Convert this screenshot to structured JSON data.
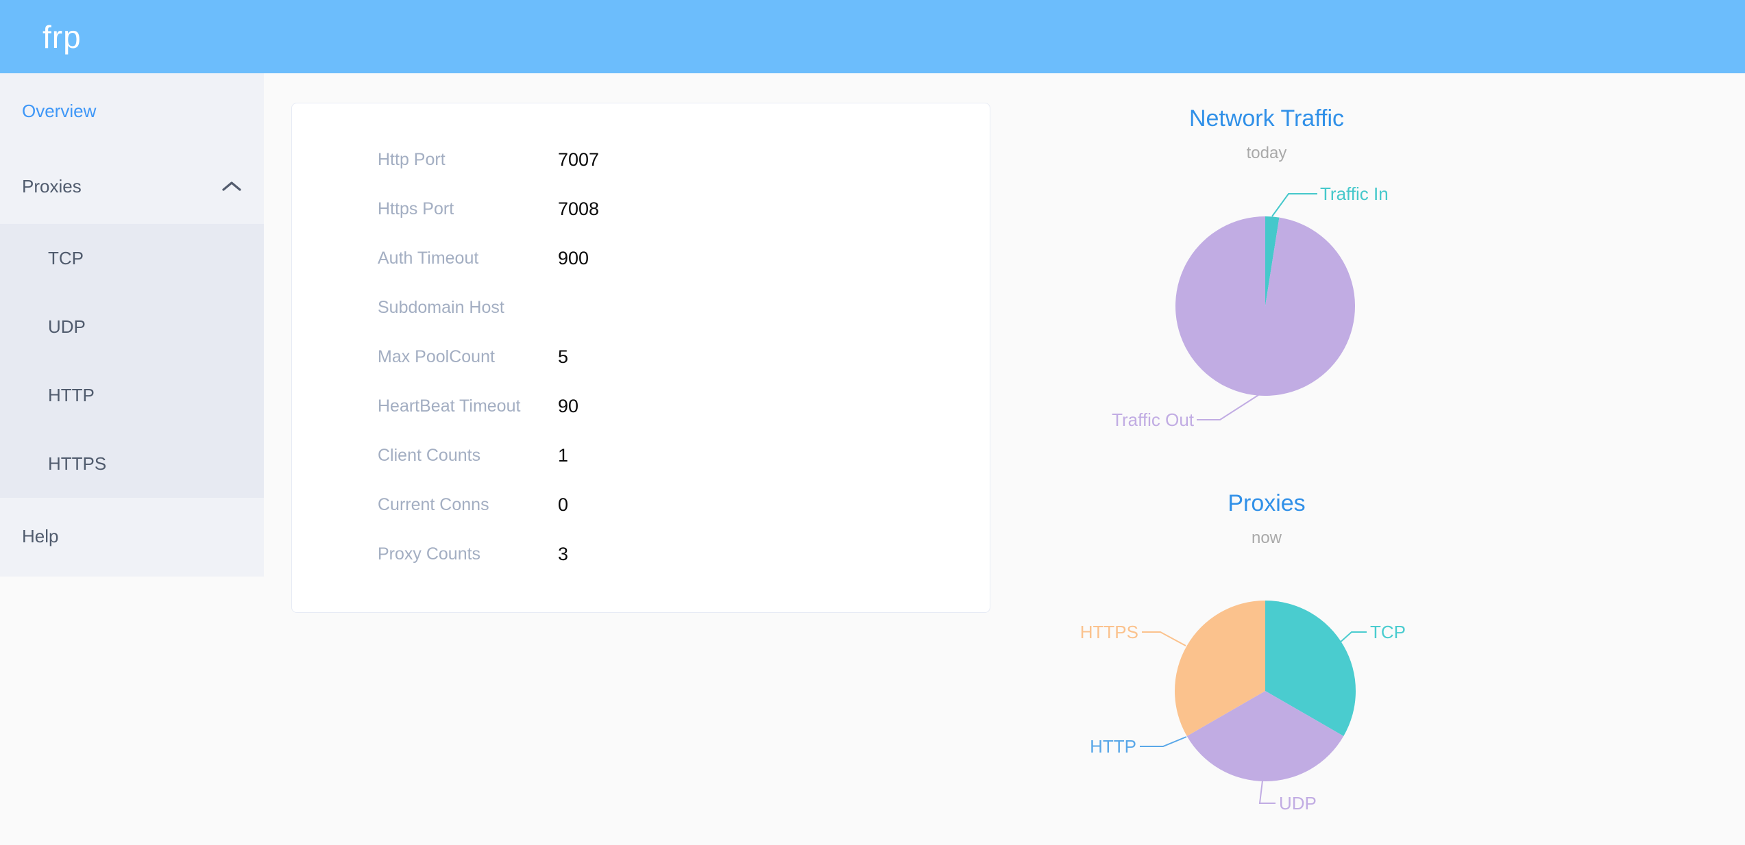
{
  "header": {
    "logo": "frp",
    "background_color": "#6cbdfc"
  },
  "sidebar": {
    "overview": "Overview",
    "proxies": "Proxies",
    "proxy_types": [
      "TCP",
      "UDP",
      "HTTP",
      "HTTPS"
    ],
    "help": "Help",
    "active_item": "Overview",
    "active_color": "#3e97f7"
  },
  "overview_card": {
    "rows": [
      {
        "label": "Http Port",
        "value": "7007"
      },
      {
        "label": "Https Port",
        "value": "7008"
      },
      {
        "label": "Auth Timeout",
        "value": "900"
      },
      {
        "label": "Subdomain Host",
        "value": ""
      },
      {
        "label": "Max PoolCount",
        "value": "5"
      },
      {
        "label": "HeartBeat Timeout",
        "value": "90"
      },
      {
        "label": "Client Counts",
        "value": "1"
      },
      {
        "label": "Current Conns",
        "value": "0"
      },
      {
        "label": "Proxy Counts",
        "value": "3"
      }
    ]
  },
  "chart_data": [
    {
      "type": "pie",
      "title": "Network Traffic",
      "subtitle": "today",
      "unit": "percent (estimated from pie angles)",
      "legend_position": "callout-labels",
      "series": [
        {
          "name": "Traffic In",
          "value": 2.5,
          "color": "#45c8cb"
        },
        {
          "name": "Traffic Out",
          "value": 97.5,
          "color": "#c1ace3"
        }
      ]
    },
    {
      "type": "pie",
      "title": "Proxies",
      "subtitle": "now",
      "unit": "proxy count",
      "legend_position": "callout-labels",
      "series": [
        {
          "name": "TCP",
          "value": 1,
          "color": "#4acccf"
        },
        {
          "name": "UDP",
          "value": 1,
          "color": "#c1ace3"
        },
        {
          "name": "HTTP",
          "value": 0,
          "color": "#59a7e8"
        },
        {
          "name": "HTTPS",
          "value": 1,
          "color": "#fbc28d"
        }
      ]
    }
  ]
}
